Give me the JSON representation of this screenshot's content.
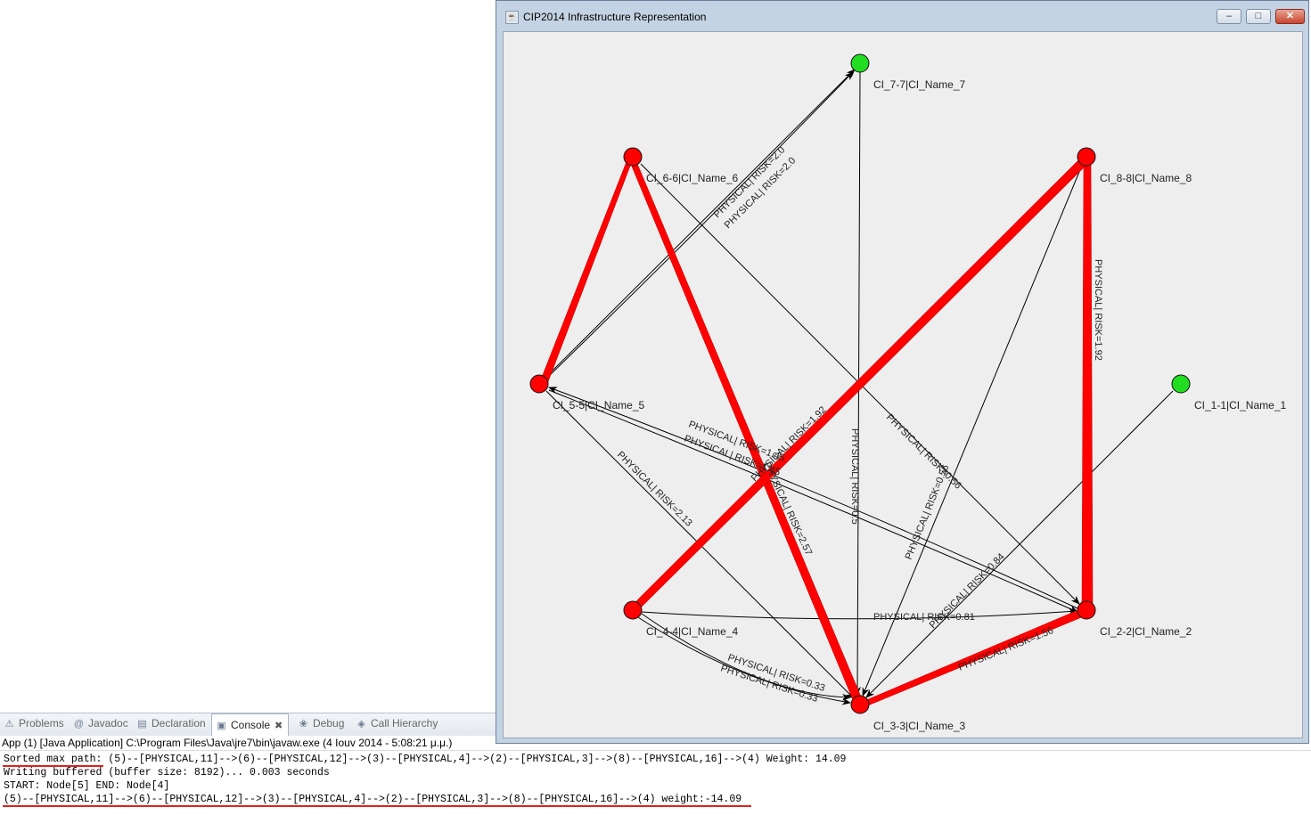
{
  "window": {
    "title": "CIP2014 Infrastructure Representation",
    "minimize_label": "–",
    "maximize_label": "□",
    "close_label": "✕"
  },
  "graph": {
    "nodes": [
      {
        "id": "7",
        "label": "CI_7-7|CI_Name_7",
        "color": "#22dd22"
      },
      {
        "id": "6",
        "label": "CI_6-6|CI_Name_6",
        "color": "#ff0000"
      },
      {
        "id": "8",
        "label": "CI_8-8|CI_Name_8",
        "color": "#ff0000"
      },
      {
        "id": "5",
        "label": "CI_5-5|CI_Name_5",
        "color": "#ff0000"
      },
      {
        "id": "1",
        "label": "CI_1-1|CI_Name_1",
        "color": "#22dd22"
      },
      {
        "id": "4",
        "label": "CI_4-4|CI_Name_4",
        "color": "#ff0000"
      },
      {
        "id": "2",
        "label": "CI_2-2|CI_Name_2",
        "color": "#ff0000"
      },
      {
        "id": "3",
        "label": "CI_3-3|CI_Name_3",
        "color": "#ff0000"
      }
    ],
    "edge_labels": [
      "PHYSICAL| RISK=2.0",
      "PHYSICAL| RISK=2.0",
      "PHYSICAL| RISK=0.5",
      "PHYSICAL| RISK=0.56",
      "PHYSICAL| RISK=0.56",
      "PHYSICAL| RISK=2.13",
      "PHYSICAL| RISK=1.45",
      "PHYSICAL| RISK=1.45",
      "PHYSICAL| RISK=0.81",
      "PHYSICAL| RISK=0.84",
      "PHYSICAL| RISK=0.33",
      "PHYSICAL| RISK=0.33",
      "PHYSICAL| RISK=1.56",
      "PHYSICAL| RISK=2.57",
      "PHYSICAL| RISK=1.92",
      "PHYSICAL| RISK=1.92"
    ],
    "node_color_on_path": "#ff0000",
    "node_color_off_path": "#22dd22",
    "path_edge_color": "#ff0000"
  },
  "eclipse": {
    "tabs": [
      {
        "label": "Problems",
        "icon": "problems-icon"
      },
      {
        "label": "Javadoc",
        "icon": "at-icon"
      },
      {
        "label": "Declaration",
        "icon": "declaration-icon"
      },
      {
        "label": "Console",
        "icon": "console-icon"
      },
      {
        "label": "Debug",
        "icon": "debug-icon"
      },
      {
        "label": "Call Hierarchy",
        "icon": "hierarchy-icon"
      }
    ],
    "launch_info": "App (1) [Java Application] C:\\Program Files\\Java\\jre7\\bin\\javaw.exe (4 Iouv 2014 - 5:08:21 μ.μ.)",
    "console_lines": [
      "Sorted max path: (5)--[PHYSICAL,11]-->(6)--[PHYSICAL,12]-->(3)--[PHYSICAL,4]-->(2)--[PHYSICAL,3]-->(8)--[PHYSICAL,16]-->(4) Weight: 14.09",
      "Writing buffered (buffer size: 8192)... 0.003 seconds",
      "START: Node[5] END: Node[4]",
      "(5)--[PHYSICAL,11]-->(6)--[PHYSICAL,12]-->(3)--[PHYSICAL,4]-->(2)--[PHYSICAL,3]-->(8)--[PHYSICAL,16]-->(4) weight:-14.09"
    ]
  }
}
